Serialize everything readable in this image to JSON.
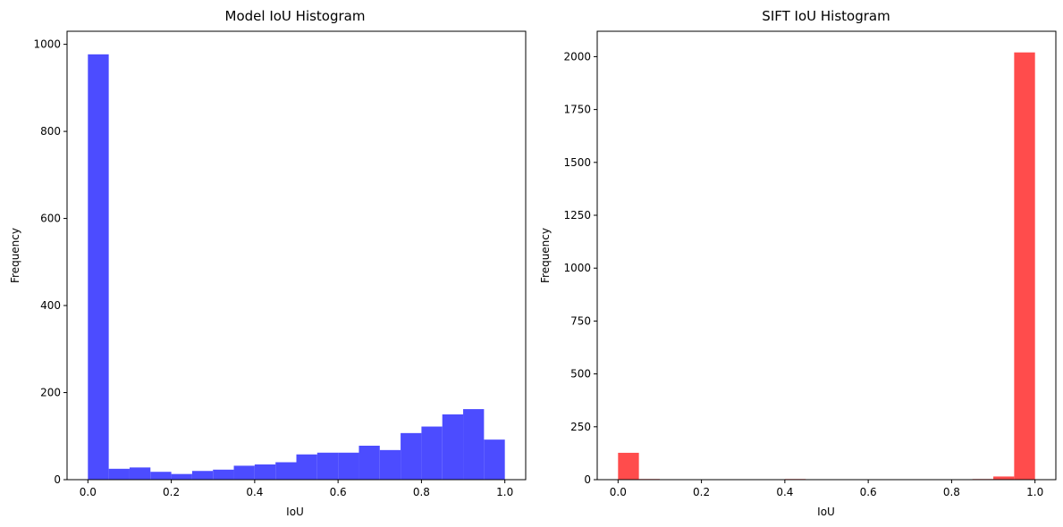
{
  "chart_data": [
    {
      "type": "bar",
      "title": "Model IoU Histogram",
      "xlabel": "IoU",
      "ylabel": "Frequency",
      "color": "#4c4cff",
      "xlim": [
        -0.05,
        1.05
      ],
      "ylim": [
        0,
        1030
      ],
      "xticks": [
        0.0,
        0.2,
        0.4,
        0.6,
        0.8,
        1.0
      ],
      "xtick_labels": [
        "0.0",
        "0.2",
        "0.4",
        "0.6",
        "0.8",
        "1.0"
      ],
      "yticks": [
        0,
        200,
        400,
        600,
        800,
        1000
      ],
      "ytick_labels": [
        "0",
        "200",
        "400",
        "600",
        "800",
        "1000"
      ],
      "bin_edges": [
        0.0,
        0.05,
        0.1,
        0.15,
        0.2,
        0.25,
        0.3,
        0.35,
        0.4,
        0.45,
        0.5,
        0.55,
        0.6,
        0.65,
        0.7,
        0.75,
        0.8,
        0.85,
        0.9,
        0.95,
        1.0
      ],
      "values": [
        977,
        25,
        28,
        18,
        13,
        20,
        23,
        32,
        35,
        40,
        58,
        62,
        62,
        78,
        68,
        107,
        122,
        150,
        162,
        92
      ]
    },
    {
      "type": "bar",
      "title": "SIFT IoU Histogram",
      "xlabel": "IoU",
      "ylabel": "Frequency",
      "color": "#ff4c4c",
      "xlim": [
        -0.05,
        1.05
      ],
      "ylim": [
        0,
        2120
      ],
      "xticks": [
        0.0,
        0.2,
        0.4,
        0.6,
        0.8,
        1.0
      ],
      "xtick_labels": [
        "0.0",
        "0.2",
        "0.4",
        "0.6",
        "0.8",
        "1.0"
      ],
      "yticks": [
        0,
        250,
        500,
        750,
        1000,
        1250,
        1500,
        1750,
        2000
      ],
      "ytick_labels": [
        "0",
        "250",
        "500",
        "750",
        "1000",
        "1250",
        "1500",
        "1750",
        "2000"
      ],
      "bin_edges": [
        0.0,
        0.05,
        0.1,
        0.15,
        0.2,
        0.25,
        0.3,
        0.35,
        0.4,
        0.45,
        0.5,
        0.55,
        0.6,
        0.65,
        0.7,
        0.75,
        0.8,
        0.85,
        0.9,
        0.95,
        1.0
      ],
      "values": [
        127,
        3,
        2,
        0,
        2,
        2,
        0,
        0,
        3,
        0,
        0,
        0,
        2,
        0,
        0,
        2,
        2,
        3,
        15,
        2020
      ]
    }
  ]
}
